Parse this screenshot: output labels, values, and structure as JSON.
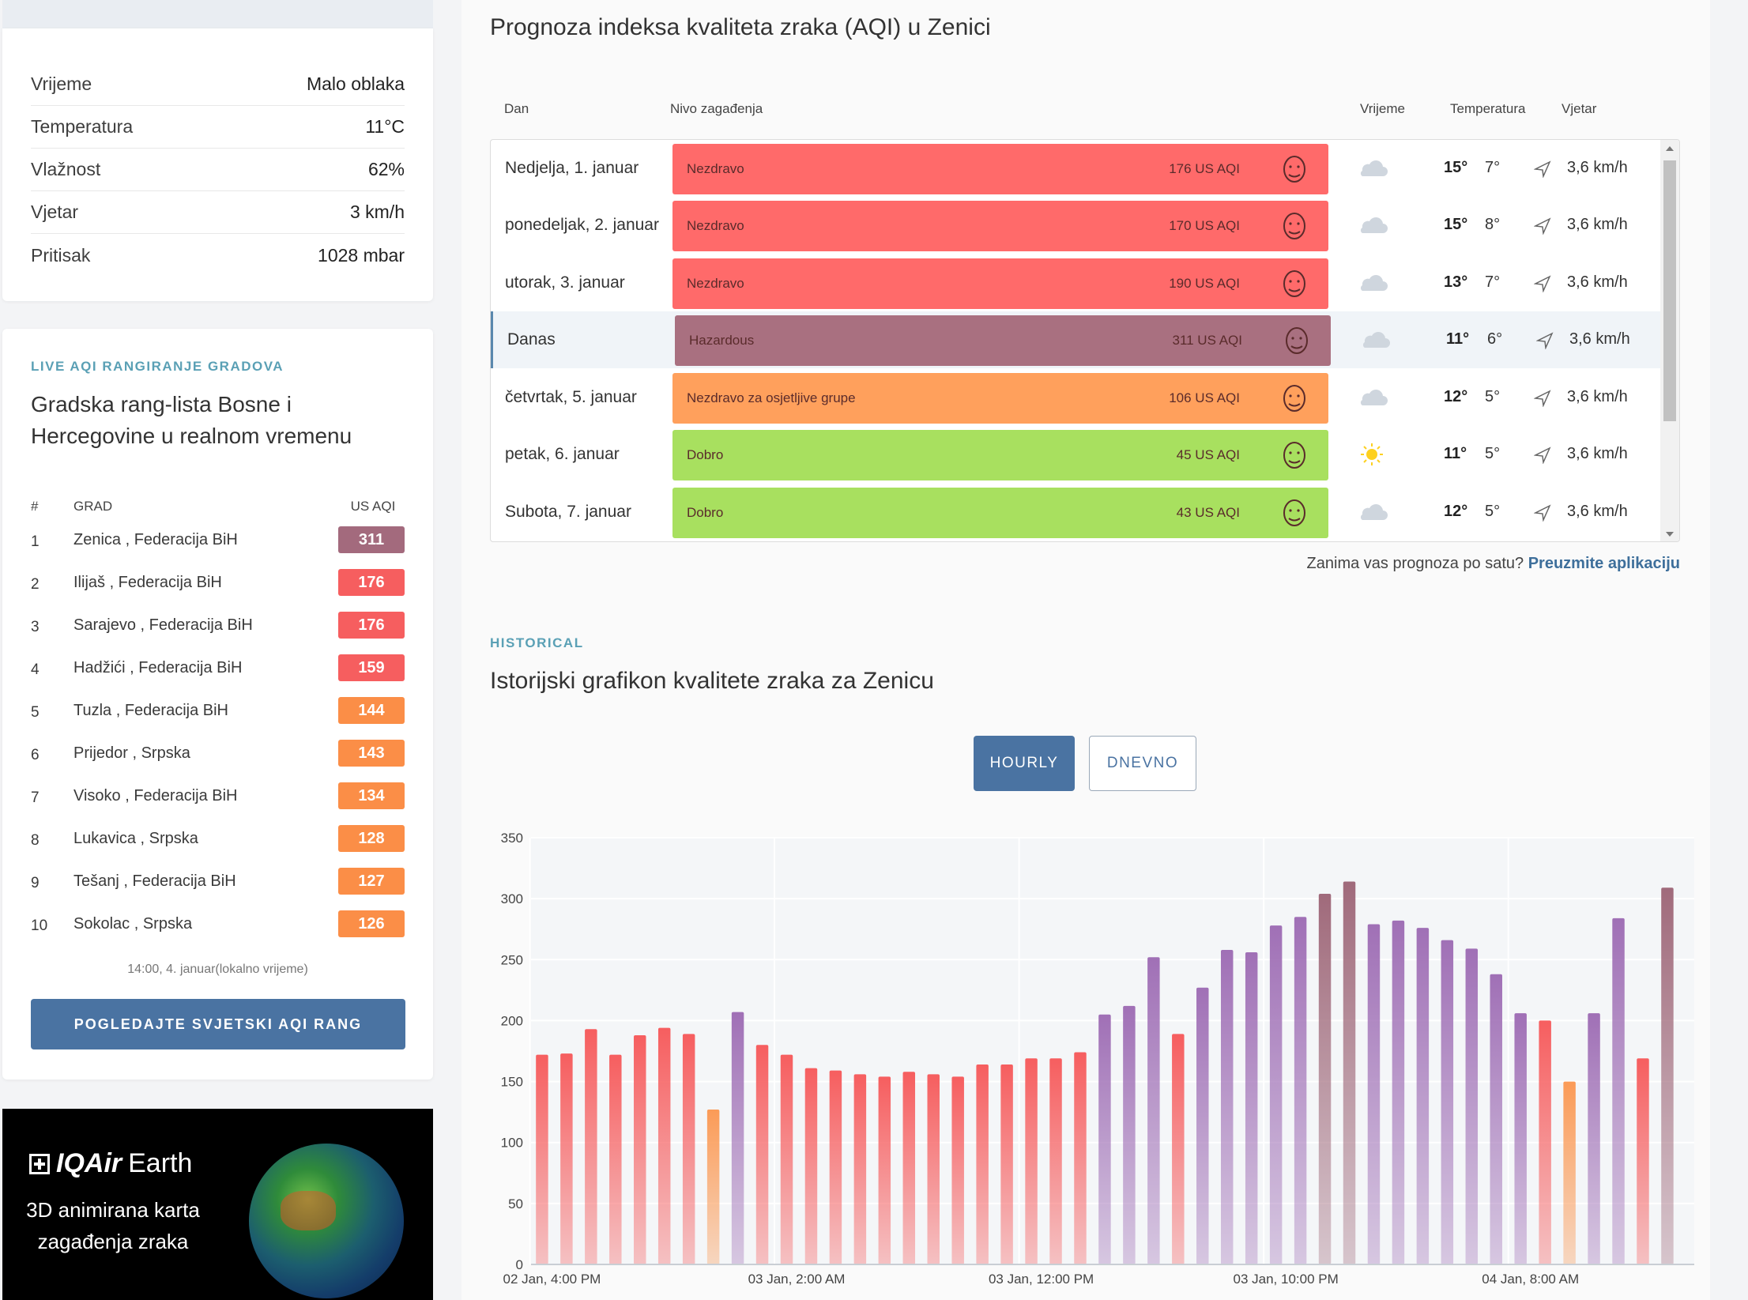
{
  "weather": {
    "rows": [
      {
        "label": "Vrijeme",
        "value": "Malo oblaka"
      },
      {
        "label": "Temperatura",
        "value": "11°C"
      },
      {
        "label": "Vlažnost",
        "value": "62%"
      },
      {
        "label": "Vjetar",
        "value": "3 km/h"
      },
      {
        "label": "Pritisak",
        "value": "1028 mbar"
      }
    ]
  },
  "ranking": {
    "eyebrow": "LIVE AQI RANGIRANJE GRADOVA",
    "title": "Gradska rang-lista Bosne i Hercegovine u realnom vremenu",
    "col_num": "#",
    "col_city": "GRAD",
    "col_aqi": "US AQI",
    "items": [
      {
        "num": "1",
        "city": "Zenica , Federacija BiH",
        "aqi": "311",
        "color": "#a36a7d"
      },
      {
        "num": "2",
        "city": "Ilijaš , Federacija BiH",
        "aqi": "176",
        "color": "#f65e5f"
      },
      {
        "num": "3",
        "city": "Sarajevo , Federacija BiH",
        "aqi": "176",
        "color": "#f65e5f"
      },
      {
        "num": "4",
        "city": "Hadžići , Federacija BiH",
        "aqi": "159",
        "color": "#f65e5f"
      },
      {
        "num": "5",
        "city": "Tuzla , Federacija BiH",
        "aqi": "144",
        "color": "#fb8e47"
      },
      {
        "num": "6",
        "city": "Prijedor , Srpska",
        "aqi": "143",
        "color": "#fb8e47"
      },
      {
        "num": "7",
        "city": "Visoko , Federacija BiH",
        "aqi": "134",
        "color": "#fb8e47"
      },
      {
        "num": "8",
        "city": "Lukavica , Srpska",
        "aqi": "128",
        "color": "#fb8e47"
      },
      {
        "num": "9",
        "city": "Tešanj , Federacija BiH",
        "aqi": "127",
        "color": "#fb8e47"
      },
      {
        "num": "10",
        "city": "Sokolac , Srpska",
        "aqi": "126",
        "color": "#fb8e47"
      }
    ],
    "timestamp": "14:00, 4. januar(lokalno vrijeme)",
    "button": "POGLEDAJTE SVJETSKI AQI RANG"
  },
  "earth": {
    "brand": "IQAir",
    "brand_suffix": "Earth",
    "text": "3D animirana karta zagađenja zraka"
  },
  "forecast": {
    "title": "Prognoza indeksa kvaliteta zraka (AQI) u Zenici",
    "headers": {
      "day": "Dan",
      "level": "Nivo zagađenja",
      "weather": "Vrijeme",
      "temp": "Temperatura",
      "wind": "Vjetar"
    },
    "rows": [
      {
        "day": "Nedjelja, 1. januar",
        "level": "Nezdravo",
        "aqi": "176 US AQI",
        "color": "#ff6a6a",
        "icon": "cloud-icon",
        "tmax": "15°",
        "tmin": "7°",
        "wind": "3,6 km/h",
        "today": false
      },
      {
        "day": "ponedeljak, 2. januar",
        "level": "Nezdravo",
        "aqi": "170 US AQI",
        "color": "#ff6a6a",
        "icon": "cloud-icon",
        "tmax": "15°",
        "tmin": "8°",
        "wind": "3,6 km/h",
        "today": false
      },
      {
        "day": "utorak, 3. januar",
        "level": "Nezdravo",
        "aqi": "190 US AQI",
        "color": "#ff6a6a",
        "icon": "cloud-icon",
        "tmax": "13°",
        "tmin": "7°",
        "wind": "3,6 km/h",
        "today": false
      },
      {
        "day": "Danas",
        "level": "Hazardous",
        "aqi": "311 US AQI",
        "color": "#a97080",
        "icon": "cloud-icon",
        "tmax": "11°",
        "tmin": "6°",
        "wind": "3,6 km/h",
        "today": true
      },
      {
        "day": "četvrtak, 5. januar",
        "level": "Nezdravo za osjetljive grupe",
        "aqi": "106 US AQI",
        "color": "#ffa05c",
        "icon": "cloud-icon",
        "tmax": "12°",
        "tmin": "5°",
        "wind": "3,6 km/h",
        "today": false
      },
      {
        "day": "petak, 6. januar",
        "level": "Dobro",
        "aqi": "45 US AQI",
        "color": "#a8e05f",
        "icon": "sun-icon",
        "tmax": "11°",
        "tmin": "5°",
        "wind": "3,6 km/h",
        "today": false
      },
      {
        "day": "Subota, 7. januar",
        "level": "Dobro",
        "aqi": "43 US AQI",
        "color": "#a8e05f",
        "icon": "cloud-icon",
        "tmax": "12°",
        "tmin": "5°",
        "wind": "3,6 km/h",
        "today": false
      }
    ],
    "note": "Zanima vas prognoza po satu?",
    "note_link": "Preuzmite aplikaciju"
  },
  "historical": {
    "eyebrow": "HISTORICAL",
    "title": "Istorijski grafikon kvalitete zraka za Zenicu",
    "tab_hourly": "HOURLY",
    "tab_daily": "DNEVNO"
  },
  "chart_data": {
    "type": "bar",
    "ylim": [
      0,
      350
    ],
    "yticks": [
      0,
      50,
      100,
      150,
      200,
      250,
      300,
      350
    ],
    "xtick_labels": [
      "02 Jan, 4:00 PM",
      "03 Jan, 2:00 AM",
      "03 Jan, 12:00 PM",
      "03 Jan, 10:00 PM",
      "04 Jan, 8:00 AM"
    ],
    "xtick_index": [
      0,
      10,
      20,
      30,
      40
    ],
    "grid": true,
    "values": [
      172,
      173,
      193,
      172,
      188,
      194,
      189,
      127,
      207,
      180,
      172,
      161,
      159,
      156,
      154,
      158,
      156,
      154,
      164,
      164,
      169,
      169,
      174,
      205,
      212,
      252,
      189,
      227,
      258,
      256,
      278,
      285,
      304,
      314,
      279,
      282,
      276,
      266,
      259,
      238,
      206,
      200,
      150,
      206,
      284,
      169,
      309
    ],
    "colors": {
      "unhealthy": "#f65e5f",
      "sensitive": "#fb9b57",
      "very_unhealthy": "#a070b6",
      "hazardous": "#a06a7b"
    }
  }
}
